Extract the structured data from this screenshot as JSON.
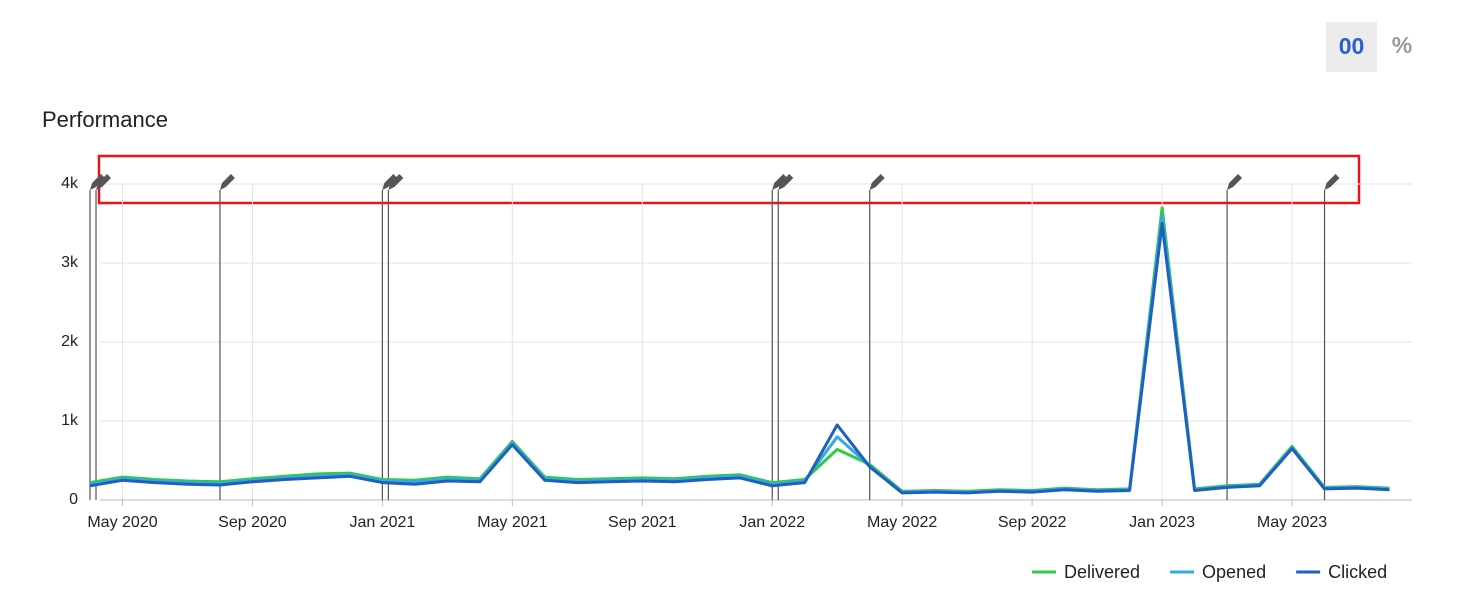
{
  "header": {
    "value_button": "00",
    "percent_button": "%"
  },
  "chart_data": {
    "type": "line",
    "title": "Performance",
    "x": [
      "2020-04",
      "2020-05",
      "2020-06",
      "2020-07",
      "2020-08",
      "2020-09",
      "2020-10",
      "2020-11",
      "2020-12",
      "2021-01",
      "2021-02",
      "2021-03",
      "2021-04",
      "2021-05",
      "2021-06",
      "2021-07",
      "2021-08",
      "2021-09",
      "2021-10",
      "2021-11",
      "2021-12",
      "2022-01",
      "2022-02",
      "2022-03",
      "2022-04",
      "2022-05",
      "2022-06",
      "2022-07",
      "2022-08",
      "2022-09",
      "2022-10",
      "2022-11",
      "2022-12",
      "2023-01",
      "2023-02",
      "2023-03",
      "2023-04",
      "2023-05",
      "2023-06",
      "2023-07",
      "2023-08"
    ],
    "series": [
      {
        "name": "Delivered",
        "color": "#2ecc40",
        "values": [
          220,
          290,
          260,
          240,
          230,
          270,
          300,
          330,
          340,
          260,
          250,
          290,
          270,
          740,
          290,
          260,
          270,
          280,
          270,
          300,
          320,
          220,
          260,
          640,
          450,
          110,
          120,
          110,
          130,
          120,
          150,
          130,
          140,
          3700,
          140,
          180,
          200,
          680,
          160,
          170,
          150
        ]
      },
      {
        "name": "Opened",
        "color": "#36a9e1",
        "values": [
          200,
          270,
          240,
          220,
          210,
          250,
          280,
          300,
          320,
          240,
          230,
          270,
          250,
          720,
          270,
          240,
          250,
          260,
          250,
          280,
          300,
          200,
          240,
          800,
          430,
          100,
          110,
          100,
          120,
          110,
          140,
          120,
          130,
          3600,
          130,
          170,
          190,
          660,
          150,
          160,
          140
        ]
      },
      {
        "name": "Clicked",
        "color": "#1f5fbf",
        "values": [
          180,
          250,
          220,
          200,
          190,
          230,
          260,
          280,
          300,
          220,
          200,
          240,
          230,
          700,
          250,
          220,
          230,
          240,
          230,
          260,
          280,
          180,
          220,
          950,
          420,
          90,
          100,
          90,
          110,
          100,
          130,
          110,
          120,
          3500,
          120,
          160,
          180,
          650,
          140,
          150,
          130
        ]
      }
    ],
    "xlim": [
      "2020-04",
      "2023-09"
    ],
    "xticks": [
      {
        "value": "2020-05",
        "label": "May 2020"
      },
      {
        "value": "2020-09",
        "label": "Sep 2020"
      },
      {
        "value": "2021-01",
        "label": "Jan 2021"
      },
      {
        "value": "2021-05",
        "label": "May 2021"
      },
      {
        "value": "2021-09",
        "label": "Sep 2021"
      },
      {
        "value": "2022-01",
        "label": "Jan 2022"
      },
      {
        "value": "2022-05",
        "label": "May 2022"
      },
      {
        "value": "2022-09",
        "label": "Sep 2022"
      },
      {
        "value": "2023-01",
        "label": "Jan 2023"
      },
      {
        "value": "2023-05",
        "label": "May 2023"
      }
    ],
    "ylim": [
      0,
      4000
    ],
    "yticks": [
      0,
      {
        "value": 1000,
        "label": "1k"
      },
      {
        "value": 2000,
        "label": "2k"
      },
      {
        "value": 3000,
        "label": "3k"
      },
      {
        "value": 4000,
        "label": "4k"
      }
    ],
    "markers": [
      "2020-04",
      "2020-04",
      "2020-08",
      "2021-01",
      "2021-01",
      "2022-01",
      "2022-01",
      "2022-04",
      "2023-03",
      "2023-06"
    ],
    "grid": true,
    "legend": "bottom-right"
  }
}
